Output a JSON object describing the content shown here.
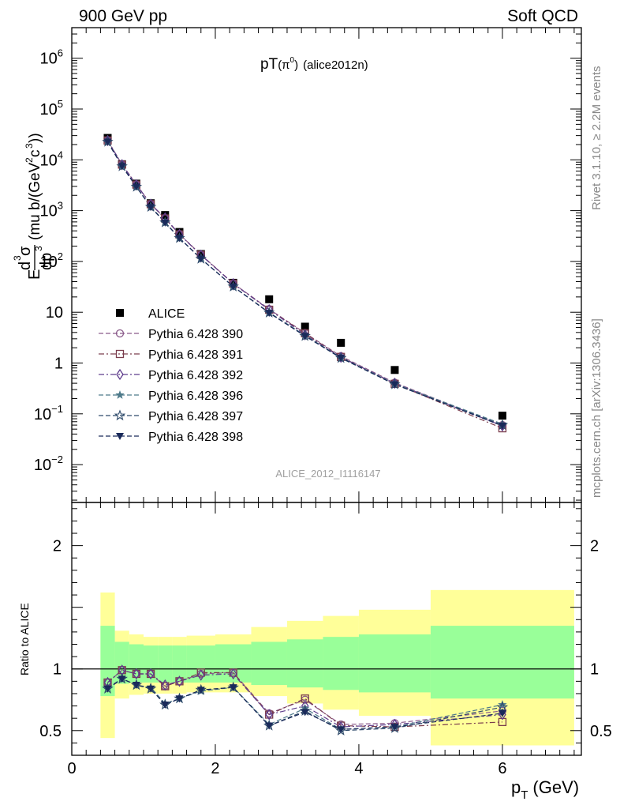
{
  "header": {
    "left": "900 GeV pp",
    "right": "Soft QCD",
    "plot_title_main": "pT",
    "plot_title_sub": "(π",
    "plot_title_sup": "0",
    "plot_title_close": ")",
    "plot_title_tag": "(alice2012n)"
  },
  "side_labels": {
    "rivet": "Rivet 3.1.10, ≥ 2.2M events",
    "mcplots": "mcplots.cern.ch [arXiv:1306.3436]"
  },
  "watermark": "ALICE_2012_I1116147",
  "axes": {
    "ylabel_main": "E d³σ/dp³ (mu b/(GeV²c³))",
    "ylabel_ratio": "Ratio to ALICE",
    "xlabel": "p_T (GeV)",
    "xlabel_p": "p",
    "xlabel_sub": "T",
    "xlabel_unit": "(GeV)",
    "main_yticks": [
      {
        "mant": "10",
        "exp": "6",
        "value": 1000000
      },
      {
        "mant": "10",
        "exp": "5",
        "value": 100000
      },
      {
        "mant": "10",
        "exp": "4",
        "value": 10000
      },
      {
        "mant": "10",
        "exp": "3",
        "value": 1000
      },
      {
        "mant": "10",
        "exp": "2",
        "value": 100
      },
      {
        "mant": "10",
        "exp": "",
        "value": 10
      },
      {
        "mant": "1",
        "exp": "",
        "value": 1
      },
      {
        "mant": "10",
        "exp": "−1",
        "value": 0.1
      },
      {
        "mant": "10",
        "exp": "−2",
        "value": 0.01
      }
    ],
    "ratio_yticks": [
      {
        "label": "2",
        "value": 2
      },
      {
        "label": "1",
        "value": 1
      },
      {
        "label": "0.5",
        "value": 0.5
      }
    ],
    "xticks": [
      {
        "label": "0",
        "value": 0
      },
      {
        "label": "2",
        "value": 2
      },
      {
        "label": "4",
        "value": 4
      },
      {
        "label": "6",
        "value": 6
      }
    ]
  },
  "chart_data": [
    {
      "type": "scatter",
      "panel": "main",
      "yscale": "log",
      "xlim": [
        0,
        7.1
      ],
      "ylim": [
        0.0018,
        4000000
      ],
      "legend_position": "left, lower-middle",
      "x": [
        0.5,
        0.7,
        0.9,
        1.1,
        1.3,
        1.5,
        1.8,
        2.25,
        2.75,
        3.25,
        3.75,
        4.5,
        6.0
      ],
      "series": [
        {
          "name": "ALICE",
          "marker": "square-filled",
          "color": "#000000",
          "line": "none",
          "values": [
            27000,
            8200,
            3400,
            1400,
            820,
            380,
            140,
            38,
            18,
            5.2,
            2.5,
            0.73,
            0.092
          ]
        },
        {
          "name": "Pythia 6.428 390",
          "marker": "circle-open",
          "color": "#8a5a8a",
          "line": "dash",
          "values": [
            24000,
            8100,
            3250,
            1350,
            710,
            345,
            135,
            37,
            11.5,
            3.9,
            1.36,
            0.41,
            0.06
          ]
        },
        {
          "name": "Pythia 6.428 391",
          "marker": "square-open",
          "color": "#7a3d4d",
          "line": "dashdot",
          "values": [
            24000,
            8050,
            3250,
            1340,
            700,
            340,
            135,
            36.5,
            11.2,
            3.85,
            1.32,
            0.39,
            0.052
          ]
        },
        {
          "name": "Pythia 6.428 392",
          "marker": "diamond-open",
          "color": "#5e3c8c",
          "line": "dashdot",
          "values": [
            24000,
            8050,
            3250,
            1340,
            720,
            340,
            133,
            36.5,
            11.2,
            3.6,
            1.3,
            0.4,
            0.058
          ]
        },
        {
          "name": "Pythia 6.428 396",
          "marker": "star-filled",
          "color": "#4e7a8a",
          "line": "dash",
          "values": [
            22800,
            7500,
            2950,
            1200,
            590,
            290,
            113,
            32,
            9.9,
            3.5,
            1.28,
            0.39,
            0.063
          ]
        },
        {
          "name": "Pythia 6.428 397",
          "marker": "star-open",
          "color": "#2e4a6a",
          "line": "dash",
          "values": [
            22600,
            7450,
            2950,
            1180,
            585,
            288,
            113,
            32,
            9.8,
            3.4,
            1.25,
            0.38,
            0.06
          ]
        },
        {
          "name": "Pythia 6.428 398",
          "marker": "triangle-down-filled",
          "color": "#1a2a5a",
          "line": "dash",
          "values": [
            22600,
            7500,
            2950,
            1170,
            580,
            288,
            113,
            32,
            9.7,
            3.4,
            1.27,
            0.38,
            0.058
          ]
        }
      ]
    },
    {
      "type": "line",
      "panel": "ratio",
      "ylim": [
        0.3,
        2.35
      ],
      "xlim": [
        0,
        7.1
      ],
      "reference_line": 1,
      "bands": {
        "edges": [
          0.4,
          0.6,
          0.8,
          1.0,
          1.2,
          1.4,
          1.6,
          2.0,
          2.5,
          3.0,
          3.5,
          4.0,
          5.0,
          7.0
        ],
        "outer": {
          "color": "#ffff99",
          "lo": [
            0.44,
            0.76,
            0.79,
            0.8,
            0.8,
            0.8,
            0.81,
            0.81,
            0.78,
            0.72,
            0.67,
            0.62,
            0.38
          ],
          "hi": [
            1.62,
            1.31,
            1.28,
            1.26,
            1.26,
            1.26,
            1.27,
            1.28,
            1.34,
            1.39,
            1.43,
            1.48,
            1.64
          ]
        },
        "inner": {
          "color": "#99ff99",
          "lo": [
            0.78,
            0.88,
            0.89,
            0.89,
            0.89,
            0.89,
            0.89,
            0.89,
            0.87,
            0.85,
            0.83,
            0.81,
            0.76
          ],
          "hi": [
            1.35,
            1.22,
            1.2,
            1.19,
            1.19,
            1.19,
            1.19,
            1.2,
            1.22,
            1.24,
            1.26,
            1.28,
            1.35
          ]
        }
      },
      "x": [
        0.5,
        0.7,
        0.9,
        1.1,
        1.3,
        1.5,
        1.8,
        2.25,
        2.75,
        3.25,
        3.75,
        4.5,
        6.0
      ],
      "series": [
        {
          "name": "Pythia 6.428 390",
          "values": [
            0.89,
            0.99,
            0.96,
            0.96,
            0.86,
            0.9,
            0.96,
            0.97,
            0.64,
            0.75,
            0.55,
            0.56,
            0.66
          ]
        },
        {
          "name": "Pythia 6.428 391",
          "values": [
            0.89,
            0.99,
            0.96,
            0.96,
            0.86,
            0.9,
            0.97,
            0.97,
            0.63,
            0.76,
            0.54,
            0.53,
            0.57
          ]
        },
        {
          "name": "Pythia 6.428 392",
          "values": [
            0.89,
            0.99,
            0.96,
            0.96,
            0.87,
            0.9,
            0.95,
            0.96,
            0.63,
            0.7,
            0.53,
            0.55,
            0.63
          ]
        },
        {
          "name": "Pythia 6.428 396",
          "values": [
            0.85,
            0.92,
            0.87,
            0.85,
            0.72,
            0.76,
            0.82,
            0.85,
            0.55,
            0.68,
            0.51,
            0.53,
            0.71
          ]
        },
        {
          "name": "Pythia 6.428 397",
          "values": [
            0.84,
            0.92,
            0.87,
            0.84,
            0.71,
            0.76,
            0.83,
            0.85,
            0.54,
            0.66,
            0.5,
            0.52,
            0.69
          ]
        },
        {
          "name": "Pythia 6.428 398",
          "values": [
            0.84,
            0.92,
            0.87,
            0.84,
            0.71,
            0.76,
            0.83,
            0.85,
            0.54,
            0.65,
            0.51,
            0.53,
            0.64
          ]
        }
      ]
    }
  ]
}
